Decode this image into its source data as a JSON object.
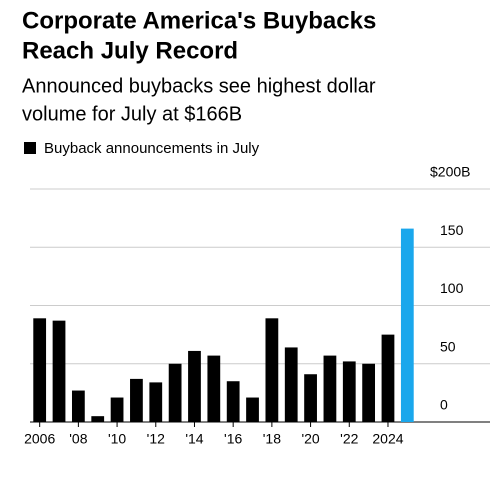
{
  "chart_data": {
    "type": "bar",
    "title": [
      "Corporate America's Buybacks",
      "Reach July Record"
    ],
    "subtitle": [
      "Announced buybacks see highest dollar",
      "volume for July at $166B"
    ],
    "categories": [
      "2006",
      null,
      "'08",
      null,
      "'10",
      null,
      "'12",
      null,
      "'14",
      null,
      "'16",
      null,
      "'18",
      null,
      "'20",
      null,
      "'22",
      null,
      "2024",
      null
    ],
    "series": [
      {
        "name": "Buyback announcements in July",
        "color": "#000000",
        "values": [
          89,
          87,
          27,
          5,
          21,
          37,
          34,
          50,
          61,
          57,
          35,
          21,
          89,
          64,
          41,
          57,
          52,
          50,
          75,
          166
        ],
        "colors": [
          "#000000",
          "#000000",
          "#000000",
          "#000000",
          "#000000",
          "#000000",
          "#000000",
          "#000000",
          "#000000",
          "#000000",
          "#000000",
          "#000000",
          "#000000",
          "#000000",
          "#000000",
          "#000000",
          "#000000",
          "#000000",
          "#000000",
          "#1aa7ec"
        ]
      }
    ],
    "ylim": [
      0,
      200
    ],
    "yticks": [
      0,
      50,
      100,
      150,
      {
        "value": 200,
        "label": "$200B"
      }
    ],
    "grid": true
  }
}
